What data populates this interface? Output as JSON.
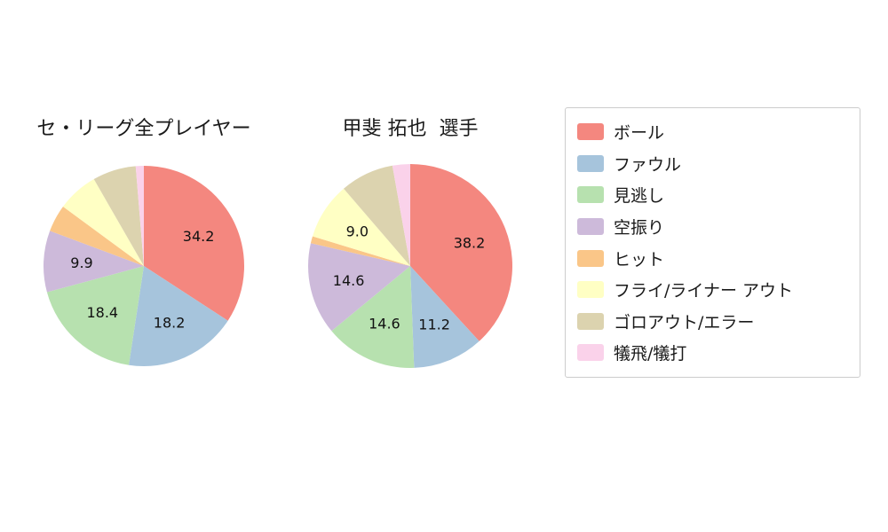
{
  "figure": {
    "background": "#ffffff"
  },
  "legend": {
    "border_color": "#cccccc",
    "items": [
      {
        "key": "ball",
        "label": "ボール",
        "color": "#f4877f"
      },
      {
        "key": "foul",
        "label": "ファウル",
        "color": "#a6c4dc"
      },
      {
        "key": "called-strike",
        "label": "見逃し",
        "color": "#b7e1af"
      },
      {
        "key": "swinging-strike",
        "label": "空振り",
        "color": "#cdbada"
      },
      {
        "key": "hit",
        "label": "ヒット",
        "color": "#fac688"
      },
      {
        "key": "fly-liner-out",
        "label": "フライ/ライナー アウト",
        "color": "#ffffc4"
      },
      {
        "key": "ground-out-error",
        "label": "ゴロアウト/エラー",
        "color": "#dcd3af"
      },
      {
        "key": "sac-fly-bunt",
        "label": "犠飛/犠打",
        "color": "#fad2ea"
      }
    ]
  },
  "chart_data": [
    {
      "type": "pie",
      "title": "セ・リーグ全プレイヤー",
      "labels": [
        "ボール",
        "ファウル",
        "見逃し",
        "空振り",
        "ヒット",
        "フライ/ライナー アウト",
        "ゴロアウト/エラー",
        "犠飛/犠打"
      ],
      "keys": [
        "ball",
        "foul",
        "called-strike",
        "swinging-strike",
        "hit",
        "fly-liner-out",
        "ground-out-error",
        "sac-fly-bunt"
      ],
      "values": [
        34.2,
        18.2,
        18.4,
        9.9,
        4.4,
        6.6,
        7.0,
        1.3
      ],
      "display_labels": [
        "34.2",
        "18.2",
        "18.4",
        "9.9",
        "",
        "",
        "",
        ""
      ],
      "colors": [
        "#f4877f",
        "#a6c4dc",
        "#b7e1af",
        "#cdbada",
        "#fac688",
        "#ffffc4",
        "#dcd3af",
        "#fad2ea"
      ],
      "start_angle_deg": 90,
      "direction": "clockwise",
      "unit": "percent",
      "legend_position": "right"
    },
    {
      "type": "pie",
      "title": "甲斐 拓也  選手",
      "labels": [
        "ボール",
        "ファウル",
        "見逃し",
        "空振り",
        "ヒット",
        "フライ/ライナー アウト",
        "ゴロアウト/エラー",
        "犠飛/犠打"
      ],
      "keys": [
        "ball",
        "foul",
        "called-strike",
        "swinging-strike",
        "hit",
        "fly-liner-out",
        "ground-out-error",
        "sac-fly-bunt"
      ],
      "values": [
        38.2,
        11.2,
        14.6,
        14.6,
        1.1,
        9.0,
        8.5,
        2.8
      ],
      "display_labels": [
        "38.2",
        "11.2",
        "14.6",
        "14.6",
        "",
        "9.0",
        "",
        ""
      ],
      "colors": [
        "#f4877f",
        "#a6c4dc",
        "#b7e1af",
        "#cdbada",
        "#fac688",
        "#ffffc4",
        "#dcd3af",
        "#fad2ea"
      ],
      "start_angle_deg": 90,
      "direction": "clockwise",
      "unit": "percent",
      "legend_position": "right"
    }
  ]
}
